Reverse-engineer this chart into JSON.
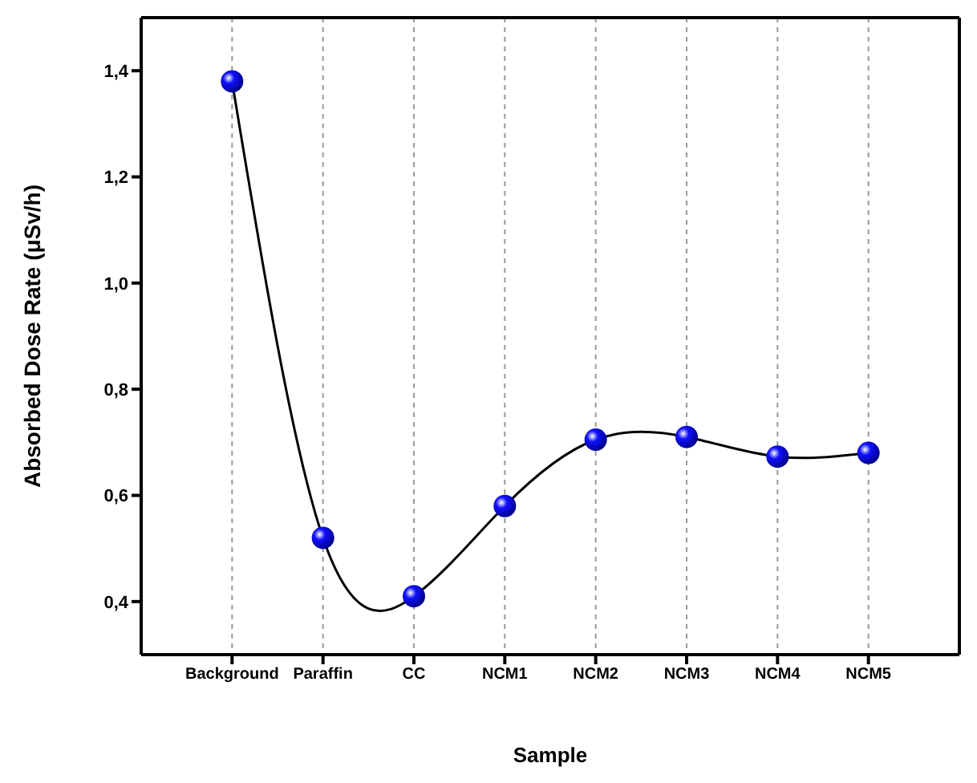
{
  "chart_data": {
    "type": "line",
    "xlabel": "Sample",
    "ylabel": "Absorbed Dose Rate (μSv/h)",
    "categories": [
      "Background",
      "Paraffin",
      "CC",
      "NCM1",
      "NCM2",
      "NCM3",
      "NCM4",
      "NCM5"
    ],
    "series": [
      {
        "color": "#1010ff",
        "values": [
          1.38,
          0.52,
          0.41,
          0.58,
          0.705,
          0.71,
          0.673,
          0.68
        ]
      }
    ],
    "ylim": [
      0.3,
      1.5
    ],
    "yticks": [
      {
        "value": 0.4,
        "label": "0,4"
      },
      {
        "value": 0.6,
        "label": "0,6"
      },
      {
        "value": 0.8,
        "label": "0,8"
      },
      {
        "value": 1.0,
        "label": "1,0"
      },
      {
        "value": 1.2,
        "label": "1,2"
      },
      {
        "value": 1.4,
        "label": "1,4"
      }
    ],
    "grid": "x",
    "marker": "circle",
    "line_style": "solid",
    "legend": false
  }
}
